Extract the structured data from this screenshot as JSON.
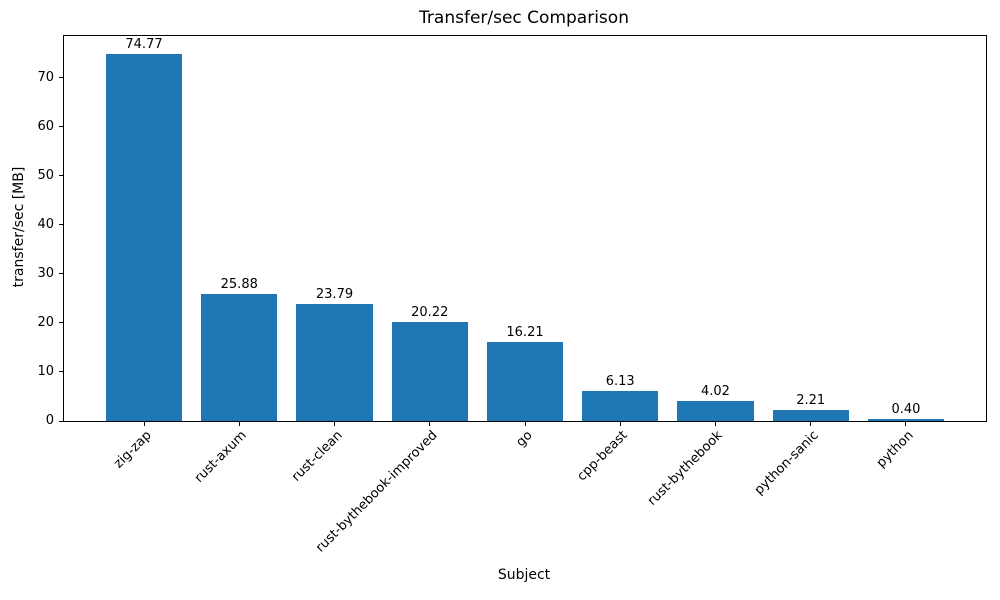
{
  "chart_data": {
    "type": "bar",
    "title": "Transfer/sec Comparison",
    "xlabel": "Subject",
    "ylabel": "transfer/sec [MB]",
    "categories": [
      "zig-zap",
      "rust-axum",
      "rust-clean",
      "rust-bythebook-improved",
      "go",
      "cpp-beast",
      "rust-bythebook",
      "python-sanic",
      "python"
    ],
    "values": [
      74.77,
      25.88,
      23.79,
      20.22,
      16.21,
      6.13,
      4.02,
      2.21,
      0.4
    ],
    "bar_labels": [
      "74.77",
      "25.88",
      "23.79",
      "20.22",
      "16.21",
      "6.13",
      "4.02",
      "2.21",
      "0.40"
    ],
    "yticks": [
      0,
      10,
      20,
      30,
      40,
      50,
      60,
      70
    ],
    "ylim": [
      0,
      78.51
    ],
    "bar_color": "#1f77b4",
    "grid": false,
    "legend_position": "none",
    "x_tick_rotation_deg": 45
  }
}
